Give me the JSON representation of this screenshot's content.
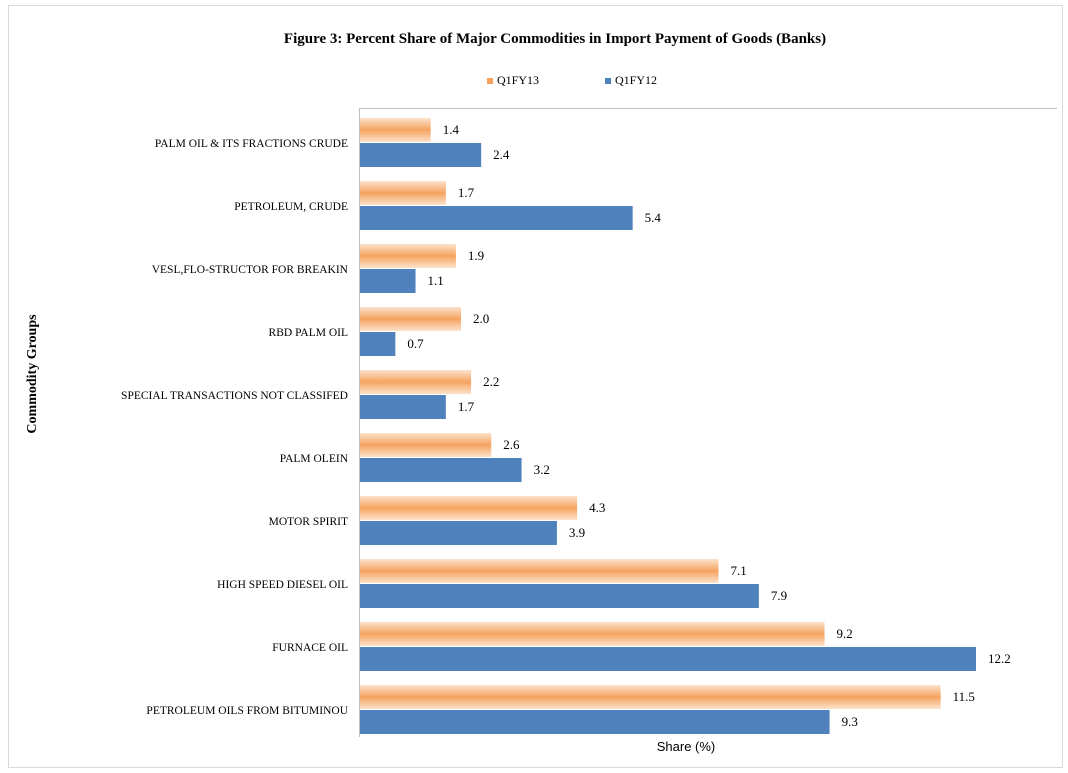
{
  "chart_data": {
    "type": "bar",
    "orientation": "horizontal",
    "title": "Figure  3: Percent Share of Major Commodities in Import Payment of Goods (Banks)",
    "xlabel": "Share (%)",
    "ylabel": "Commodity Groups",
    "legend_position": "top",
    "grid": false,
    "xlim": [
      0,
      12.2
    ],
    "categories": [
      "PALM OIL & ITS FRACTIONS CRUDE",
      "PETROLEUM, CRUDE",
      "VESL,FLO-STRUCTOR FOR BREAKIN",
      "RBD PALM OIL",
      "SPECIAL TRANSACTIONS NOT CLASSIFED",
      "PALM OLEIN",
      "MOTOR SPIRIT",
      "HIGH SPEED DIESEL OIL",
      "FURNACE OIL",
      "PETROLEUM OILS FROM BITUMINOU"
    ],
    "series": [
      {
        "name": "Q1FY13",
        "color": "#f6a25b",
        "values": [
          1.4,
          1.7,
          1.9,
          2.0,
          2.2,
          2.6,
          4.3,
          7.1,
          9.2,
          11.5
        ],
        "labels": [
          "1.4",
          "1.7",
          "1.9",
          "2.0",
          "2.2",
          "2.6",
          "4.3",
          "7.1",
          "9.2",
          "11.5"
        ]
      },
      {
        "name": "Q1FY12",
        "color": "#4f81bd",
        "values": [
          2.4,
          5.4,
          1.1,
          0.7,
          1.7,
          3.2,
          3.9,
          7.9,
          12.2,
          9.3
        ],
        "labels": [
          "2.4",
          "5.4",
          "1.1",
          "0.7",
          "1.7",
          "3.2",
          "3.9",
          "7.9",
          "12.2",
          "9.3"
        ]
      }
    ]
  }
}
